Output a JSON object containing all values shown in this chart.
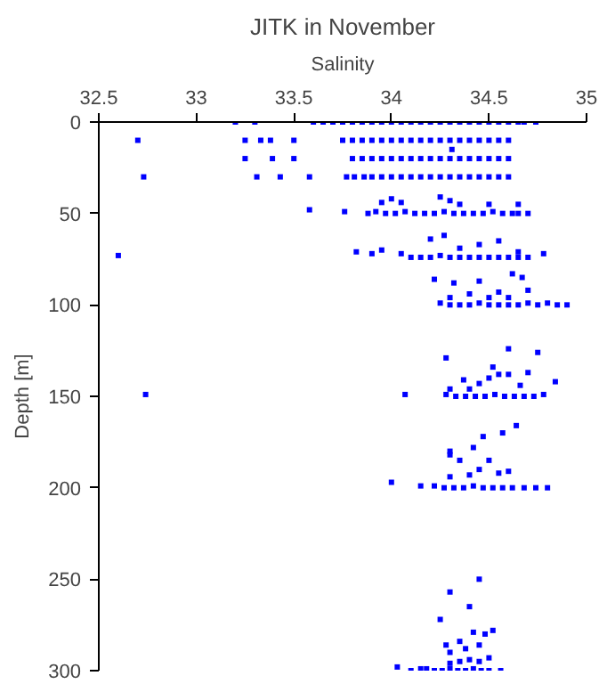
{
  "chart_data": {
    "type": "scatter",
    "title": "JITK in November",
    "xlabel": "Salinity",
    "ylabel": "Depth [m]",
    "xlim": [
      32.5,
      35
    ],
    "xticks": [
      32.5,
      33,
      33.5,
      34,
      34.5,
      35
    ],
    "ylim": [
      300,
      0
    ],
    "yticks": [
      0,
      50,
      100,
      150,
      200,
      250,
      300
    ],
    "grid": false,
    "marker": "square",
    "series": [
      {
        "color": "#0000ff",
        "x": [
          33.2,
          33.3,
          33.6,
          33.65,
          33.7,
          33.75,
          33.8,
          33.85,
          33.9,
          33.95,
          34.0,
          34.05,
          34.1,
          34.15,
          34.2,
          34.25,
          34.3,
          34.35,
          34.4,
          34.45,
          34.5,
          34.55,
          34.6,
          34.65,
          34.68,
          34.74,
          32.7,
          33.25,
          33.33,
          33.38,
          33.5,
          33.75,
          33.8,
          33.85,
          33.9,
          33.95,
          34.0,
          34.05,
          34.1,
          34.15,
          34.2,
          34.25,
          34.3,
          34.35,
          34.4,
          34.45,
          34.5,
          34.55,
          34.6,
          34.31,
          33.25,
          33.39,
          33.5,
          33.8,
          33.85,
          33.9,
          33.95,
          34.0,
          34.05,
          34.1,
          34.15,
          34.2,
          34.25,
          34.3,
          34.35,
          34.4,
          34.45,
          34.5,
          34.55,
          34.6,
          32.73,
          33.31,
          33.43,
          33.58,
          33.77,
          33.81,
          33.86,
          33.9,
          33.95,
          34.0,
          34.05,
          34.1,
          34.15,
          34.2,
          34.25,
          34.3,
          34.35,
          34.4,
          34.45,
          34.5,
          34.55,
          34.6,
          33.58,
          33.76,
          33.88,
          33.92,
          33.97,
          34.02,
          34.07,
          34.12,
          34.17,
          34.22,
          34.27,
          34.32,
          34.37,
          34.42,
          34.47,
          34.52,
          34.57,
          34.62,
          34.65,
          34.7,
          33.95,
          34.0,
          34.05,
          34.25,
          34.3,
          34.35,
          34.5,
          34.65,
          32.6,
          33.82,
          33.9,
          33.95,
          34.05,
          34.1,
          34.15,
          34.2,
          34.25,
          34.3,
          34.35,
          34.4,
          34.45,
          34.5,
          34.55,
          34.6,
          34.65,
          34.7,
          34.78,
          34.2,
          34.27,
          34.35,
          34.45,
          34.55,
          34.65,
          34.25,
          34.3,
          34.35,
          34.4,
          34.45,
          34.5,
          34.55,
          34.6,
          34.65,
          34.7,
          34.75,
          34.8,
          34.85,
          34.9,
          34.22,
          34.32,
          34.45,
          34.62,
          34.67,
          34.4,
          34.55,
          34.7,
          34.3,
          34.5,
          34.6,
          32.74,
          34.07,
          34.28,
          34.33,
          34.38,
          34.43,
          34.48,
          34.53,
          34.58,
          34.63,
          34.68,
          34.73,
          34.78,
          34.84,
          34.3,
          34.4,
          34.45,
          34.5,
          34.55,
          34.6,
          34.66,
          34.7,
          34.75,
          34.28,
          34.37,
          34.52,
          34.6,
          34.0,
          34.15,
          34.22,
          34.27,
          34.32,
          34.37,
          34.42,
          34.47,
          34.52,
          34.57,
          34.62,
          34.68,
          34.74,
          34.8,
          34.3,
          34.4,
          34.45,
          34.55,
          34.6,
          34.35,
          34.5,
          34.3,
          34.42,
          34.47,
          34.57,
          34.64,
          34.3,
          34.03,
          34.1,
          34.15,
          34.18,
          34.22,
          34.26,
          34.3,
          34.34,
          34.38,
          34.42,
          34.46,
          34.5,
          34.56,
          34.3,
          34.35,
          34.4,
          34.45,
          34.5,
          34.3,
          34.38,
          34.45,
          34.28,
          34.35,
          34.42,
          34.48,
          34.52,
          34.25,
          34.4,
          34.3,
          34.45
        ],
        "values": [
          0,
          0,
          0,
          0,
          0,
          0,
          0,
          0,
          0,
          0,
          0,
          0,
          0,
          0,
          0,
          0,
          0,
          0,
          0,
          0,
          0,
          0,
          0,
          0,
          0,
          0,
          10,
          10,
          10,
          10,
          10,
          10,
          10,
          10,
          10,
          10,
          10,
          10,
          10,
          10,
          10,
          10,
          10,
          10,
          10,
          10,
          10,
          10,
          10,
          15,
          20,
          20,
          20,
          20,
          20,
          20,
          20,
          20,
          20,
          20,
          20,
          20,
          20,
          20,
          20,
          20,
          20,
          20,
          20,
          20,
          30,
          30,
          30,
          30,
          30,
          30,
          30,
          30,
          30,
          30,
          30,
          30,
          30,
          30,
          30,
          30,
          30,
          30,
          30,
          30,
          30,
          30,
          48,
          49,
          50,
          49,
          50,
          50,
          49,
          50,
          50,
          50,
          49,
          50,
          50,
          50,
          50,
          49,
          50,
          50,
          50,
          50,
          44,
          42,
          44,
          41,
          43,
          45,
          45,
          45,
          73,
          71,
          72,
          70,
          72,
          74,
          74,
          74,
          73,
          74,
          74,
          74,
          74,
          74,
          74,
          74,
          74,
          74,
          72,
          64,
          62,
          69,
          67,
          65,
          71,
          99,
          100,
          100,
          100,
          99,
          100,
          100,
          100,
          100,
          99,
          100,
          99,
          100,
          100,
          86,
          88,
          87,
          83,
          85,
          94,
          93,
          92,
          96,
          96,
          96,
          149,
          149,
          149,
          150,
          150,
          150,
          150,
          149,
          150,
          150,
          150,
          150,
          149,
          142,
          146,
          146,
          143,
          140,
          138,
          138,
          144,
          137,
          126,
          129,
          141,
          134,
          124,
          197,
          199,
          199,
          200,
          200,
          200,
          199,
          200,
          200,
          200,
          200,
          200,
          200,
          200,
          194,
          193,
          190,
          192,
          191,
          185,
          185,
          180,
          178,
          172,
          170,
          166,
          182,
          298,
          300,
          299,
          299,
          300,
          300,
          299,
          300,
          300,
          299,
          300,
          300,
          300,
          296,
          295,
          294,
          295,
          293,
          290,
          288,
          286,
          286,
          284,
          279,
          280,
          278,
          272,
          265,
          257,
          250
        ]
      }
    ]
  }
}
